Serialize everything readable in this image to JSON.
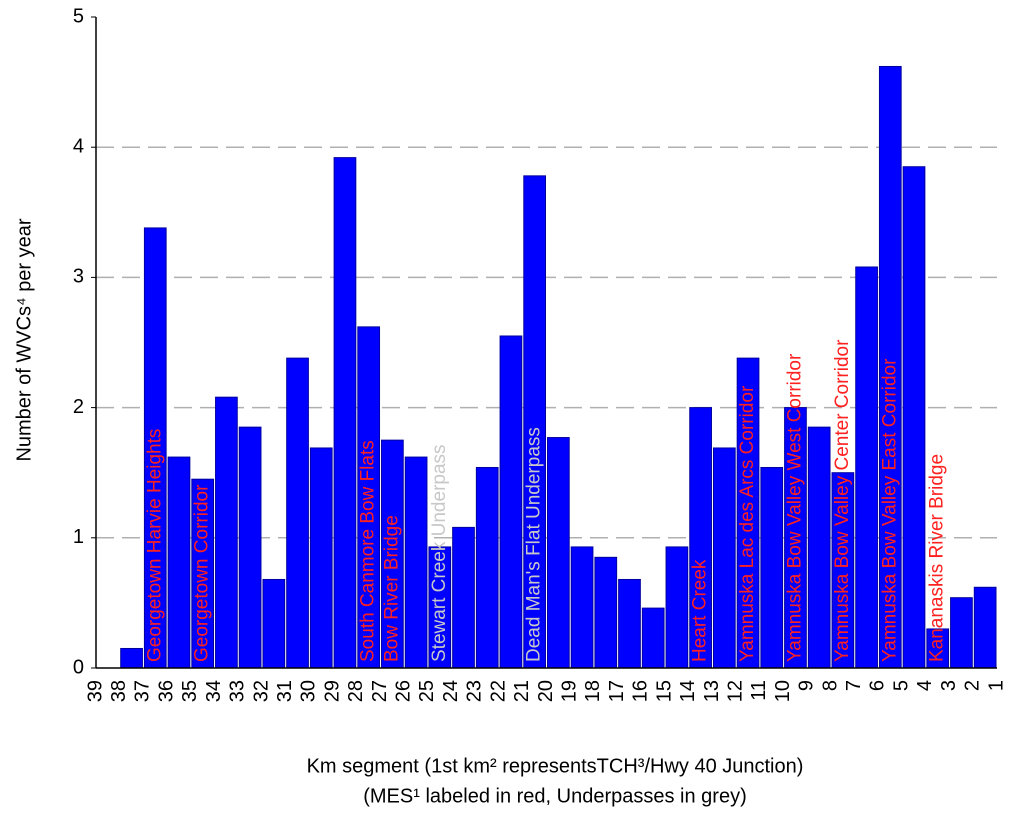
{
  "chart_data": {
    "type": "bar",
    "y_label": "Number of WVCs⁴ per year",
    "x_label_lines": [
      "Km segment (1st km² representsTCH³/Hwy 40 Junction)",
      "(MES¹ labeled in red, Underpasses in grey)"
    ],
    "categories": [
      "39",
      "38",
      "37",
      "36",
      "35",
      "34",
      "33",
      "32",
      "31",
      "30",
      "29",
      "28",
      "27",
      "26",
      "25",
      "24",
      "23",
      "22",
      "21",
      "20",
      "19",
      "18",
      "17",
      "16",
      "15",
      "14",
      "13",
      "12",
      "11",
      "10",
      "9",
      "8",
      "7",
      "6",
      "5",
      "4",
      "3",
      "2",
      "1"
    ],
    "values": [
      null,
      0.15,
      3.38,
      1.62,
      1.45,
      2.08,
      1.85,
      0.68,
      2.38,
      1.69,
      3.92,
      2.62,
      1.75,
      1.62,
      0.93,
      1.08,
      1.54,
      2.55,
      3.78,
      1.77,
      0.93,
      0.85,
      0.68,
      0.46,
      0.93,
      2.0,
      1.69,
      2.38,
      1.54,
      2.0,
      1.85,
      1.5,
      3.08,
      4.62,
      3.85,
      0.3,
      0.54,
      0.62,
      null
    ],
    "color": "#0000ff",
    "ylim": [
      0,
      5
    ],
    "yticks": [
      0,
      1,
      2,
      3,
      4,
      5
    ],
    "grid": true,
    "annotations": [
      {
        "text": "Georgetown Harvie Heights",
        "at": "37",
        "color": "#ff2020"
      },
      {
        "text": "Georgetown Corridor",
        "at": "35",
        "color": "#ff2020"
      },
      {
        "text": "South Canmore Bow Flats",
        "at": "28",
        "color": "#ff2020"
      },
      {
        "text": "Bow River Bridge",
        "at": "27",
        "color": "#ff2020"
      },
      {
        "text": "Stewart Creek Underpass",
        "at": "25",
        "color": "#c8c8c8"
      },
      {
        "text": "Dead Man's Flat Underpass",
        "at": "21",
        "color": "#c8c8c8"
      },
      {
        "text": "Heart Creek",
        "at": "14",
        "color": "#ff2020"
      },
      {
        "text": "Yamnuska Lac des Arcs Corridor",
        "at": "12",
        "color": "#ff2020"
      },
      {
        "text": "Yamnuska Bow Valley West Corridor",
        "at": "10",
        "color": "#ff2020"
      },
      {
        "text": "Yamnuska Bow Valley Center Corridor",
        "at": "8",
        "color": "#ff2020"
      },
      {
        "text": "Yamnuska Bow Valley East Corridor",
        "at": "6",
        "color": "#ff2020"
      },
      {
        "text": "Kananaskis River Bridge",
        "at": "4",
        "color": "#ff2020"
      }
    ]
  }
}
